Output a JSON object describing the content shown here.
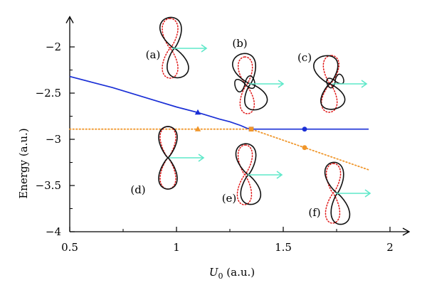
{
  "chart_data": {
    "type": "line",
    "xlabel_sym": "U",
    "xlabel_sub": "0",
    "xlabel_unit": " (a.u.)",
    "ylabel": "Energy (a.u.)",
    "xlim": [
      0.5,
      2.05
    ],
    "ylim": [
      -4,
      -1.75
    ],
    "x_ticks": [
      "0.5",
      "1",
      "1.5",
      "2"
    ],
    "y_ticks": [
      "−4",
      "−3.5",
      "−3",
      "−2.5",
      "−2"
    ],
    "series": [
      {
        "color": "#1a2fd6",
        "style": "solid",
        "x": [
          0.5,
          0.6,
          0.7,
          0.8,
          0.9,
          1.0,
          1.1,
          1.2,
          1.25,
          1.3,
          1.33,
          1.35,
          1.4,
          1.5,
          1.6,
          1.7,
          1.8,
          1.9
        ],
        "y": [
          -2.32,
          -2.38,
          -2.44,
          -2.51,
          -2.58,
          -2.65,
          -2.71,
          -2.78,
          -2.81,
          -2.85,
          -2.88,
          -2.89,
          -2.89,
          -2.89,
          -2.89,
          -2.89,
          -2.89,
          -2.89
        ]
      },
      {
        "color": "#f0962a",
        "style": "dotted",
        "x": [
          0.5,
          1.0,
          1.35,
          1.45,
          1.6,
          1.75,
          1.9
        ],
        "y": [
          -2.89,
          -2.89,
          -2.89,
          -2.97,
          -3.09,
          -3.21,
          -3.33
        ]
      }
    ],
    "markers": [
      {
        "x": 1.1,
        "y": -2.71,
        "shape": "triangle",
        "color": "#1a2fd6"
      },
      {
        "x": 1.35,
        "y": -2.89,
        "shape": "square",
        "color": "#1a2fd6"
      },
      {
        "x": 1.6,
        "y": -2.89,
        "shape": "circle",
        "color": "#1a2fd6"
      },
      {
        "x": 1.1,
        "y": -2.89,
        "shape": "triangle",
        "color": "#f0962a"
      },
      {
        "x": 1.35,
        "y": -2.89,
        "shape": "square",
        "color": "#f0962a"
      },
      {
        "x": 1.6,
        "y": -3.09,
        "shape": "circle",
        "color": "#f0962a"
      }
    ],
    "insets": [
      {
        "label": "(a)"
      },
      {
        "label": "(b)"
      },
      {
        "label": "(c)"
      },
      {
        "label": "(d)"
      },
      {
        "label": "(e)"
      },
      {
        "label": "(f)"
      }
    ],
    "colors": {
      "axis": "#000000",
      "inset_solid": "#111111",
      "inset_dotted": "#e01a1a",
      "inset_arrow": "#5fe8c9"
    }
  }
}
